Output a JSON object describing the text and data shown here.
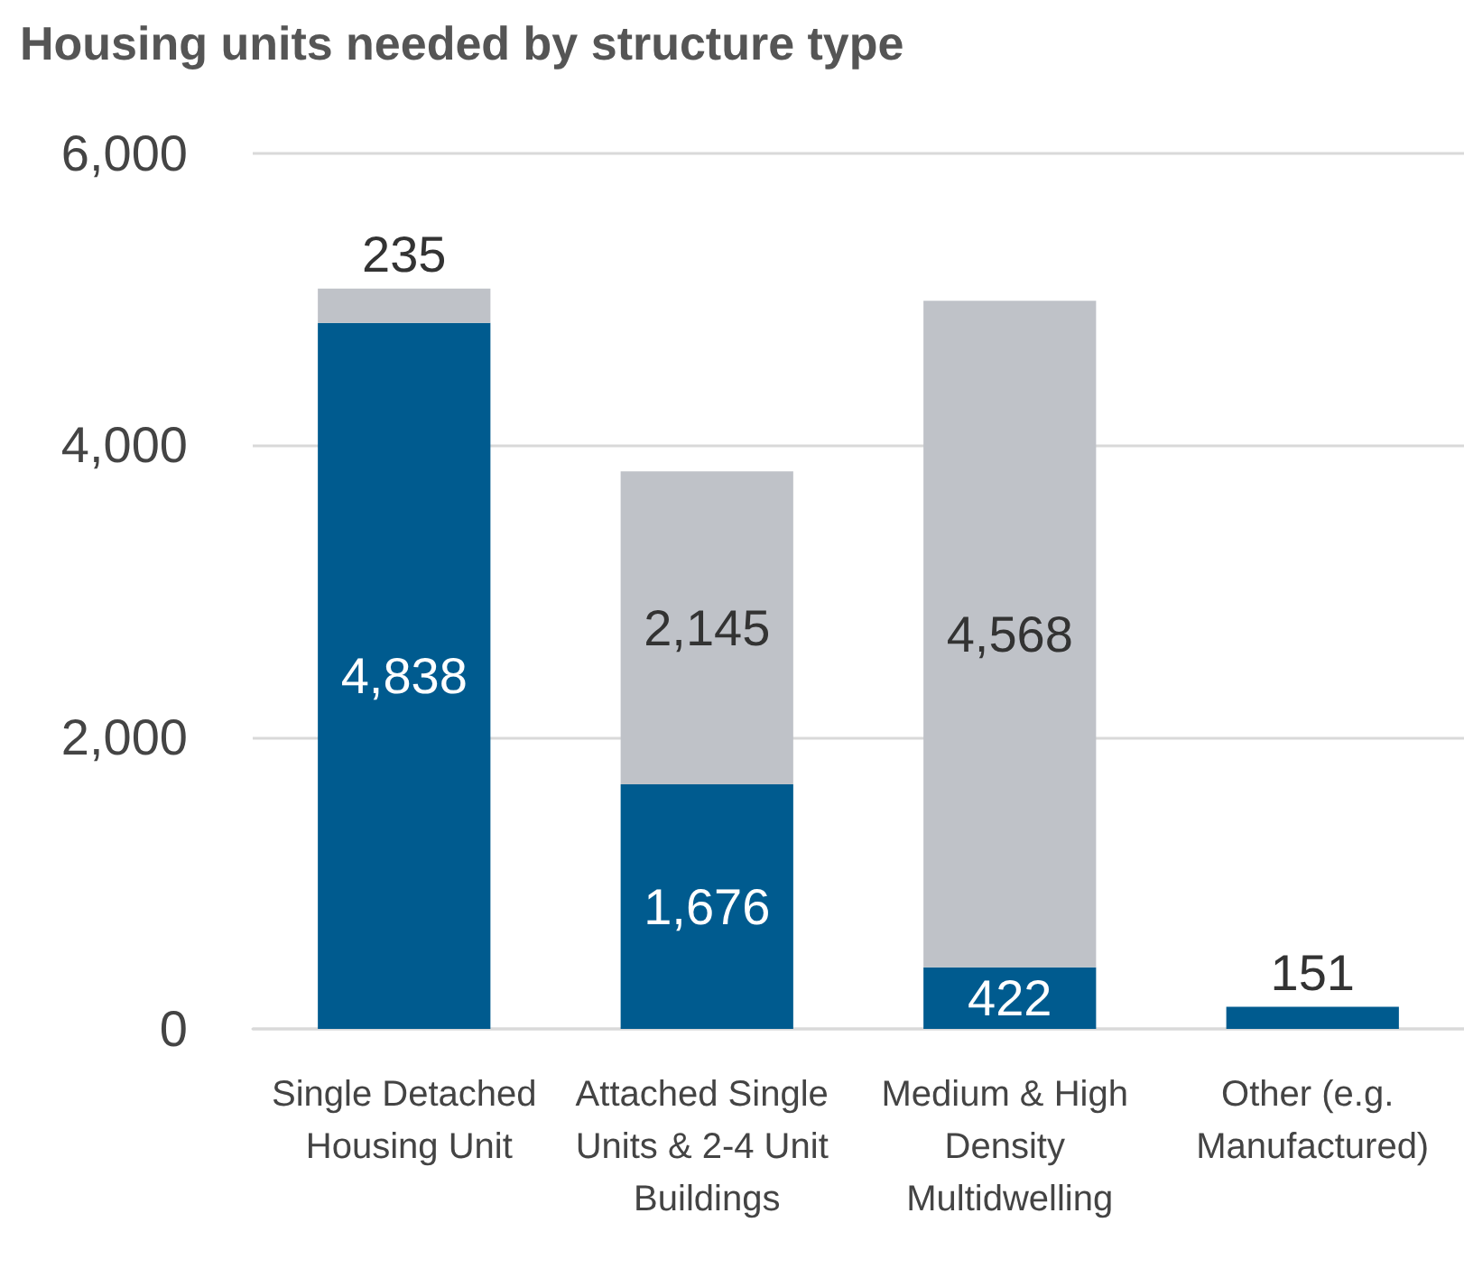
{
  "chart_data": {
    "type": "bar",
    "title": "Housing units needed by structure type",
    "stacked": true,
    "categories": [
      "Single Detached Housing Unit",
      "Attached Single Units & 2-4 Unit Buildings",
      "Medium & High Density Multidwelling",
      "Other (e.g. Manufactured)"
    ],
    "series": [
      {
        "color": "#005b8f",
        "values": [
          4838,
          1676,
          422,
          151
        ],
        "value_labels": [
          "4,838",
          "1,676",
          "422",
          "151"
        ]
      },
      {
        "color": "#bfc2c8",
        "values": [
          235,
          2145,
          4568,
          null
        ],
        "value_labels": [
          "235",
          "2,145",
          "4,568",
          null
        ]
      }
    ],
    "ylim": [
      0,
      6000
    ],
    "yticks": [
      {
        "value": 0,
        "label": "0"
      },
      {
        "value": 2000,
        "label": "2,000"
      },
      {
        "value": 4000,
        "label": "4,000"
      },
      {
        "value": 6000,
        "label": "6,000"
      }
    ],
    "grid": "y"
  }
}
